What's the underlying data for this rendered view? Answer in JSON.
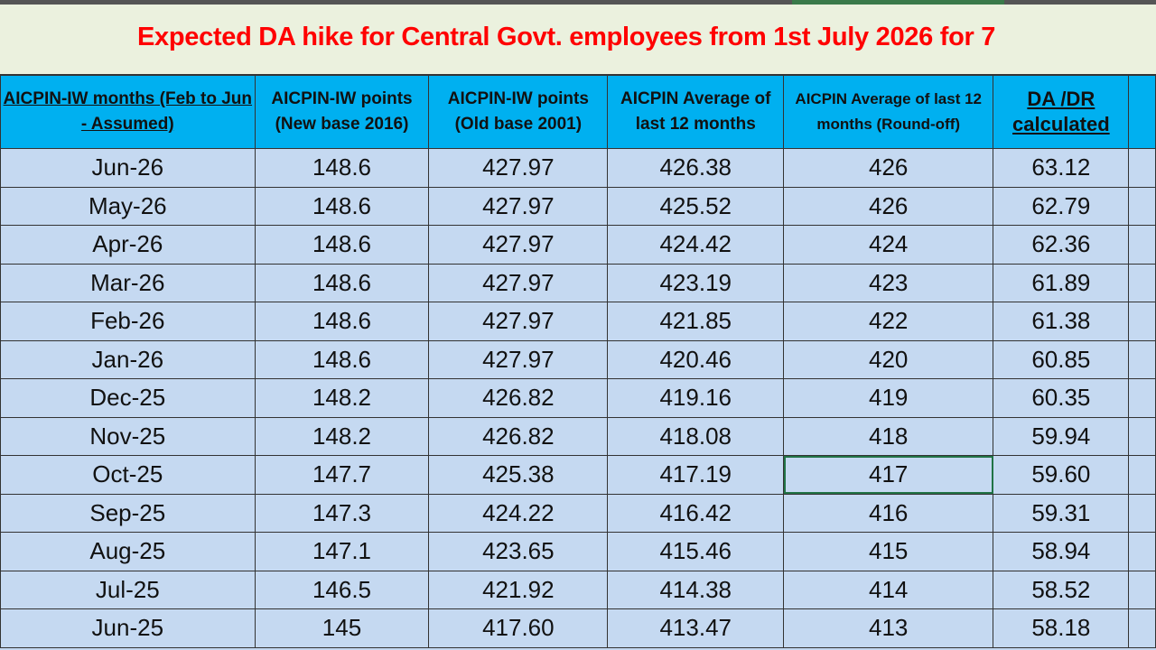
{
  "title": "Expected DA hike for Central Govt. employees from 1st July 2026 for 7",
  "colors": {
    "title": "#ff0000",
    "header_bg": "#00b0f0",
    "cell_bg": "#c5d9f1",
    "title_bg": "#ebf1de",
    "selection": "#217346"
  },
  "columns": [
    "AICPIN-IW months (Feb to Jun - Assumed)",
    "AICPIN-IW points (New base 2016)",
    "AICPIN-IW points (Old base 2001)",
    "AICPIN Average of last 12 months",
    "AICPIN Average of last 12 months (Round-off)",
    "DA /DR calculated"
  ],
  "rows": [
    [
      "Jun-26",
      "148.6",
      "427.97",
      "426.38",
      "426",
      "63.12"
    ],
    [
      "May-26",
      "148.6",
      "427.97",
      "425.52",
      "426",
      "62.79"
    ],
    [
      "Apr-26",
      "148.6",
      "427.97",
      "424.42",
      "424",
      "62.36"
    ],
    [
      "Mar-26",
      "148.6",
      "427.97",
      "423.19",
      "423",
      "61.89"
    ],
    [
      "Feb-26",
      "148.6",
      "427.97",
      "421.85",
      "422",
      "61.38"
    ],
    [
      "Jan-26",
      "148.6",
      "427.97",
      "420.46",
      "420",
      "60.85"
    ],
    [
      "Dec-25",
      "148.2",
      "426.82",
      "419.16",
      "419",
      "60.35"
    ],
    [
      "Nov-25",
      "148.2",
      "426.82",
      "418.08",
      "418",
      "59.94"
    ],
    [
      "Oct-25",
      "147.7",
      "425.38",
      "417.19",
      "417",
      "59.60"
    ],
    [
      "Sep-25",
      "147.3",
      "424.22",
      "416.42",
      "416",
      "59.31"
    ],
    [
      "Aug-25",
      "147.1",
      "423.65",
      "415.46",
      "415",
      "58.94"
    ],
    [
      "Jul-25",
      "146.5",
      "421.92",
      "414.38",
      "414",
      "58.52"
    ],
    [
      "Jun-25",
      "145",
      "417.60",
      "413.47",
      "413",
      "58.18"
    ]
  ],
  "selected_cell": {
    "row": 8,
    "col": 4
  }
}
